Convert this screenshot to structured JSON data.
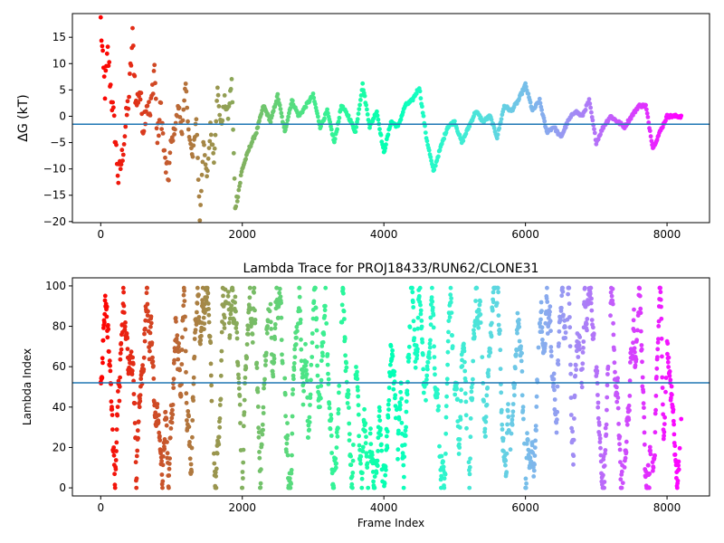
{
  "chart_data": [
    {
      "type": "scatter",
      "title": "",
      "xlabel": "",
      "ylabel": "ΔG (kT)",
      "xlim": [
        -400,
        8600
      ],
      "ylim": [
        -20.2,
        19.5
      ],
      "xticks": [
        0,
        2000,
        4000,
        6000,
        8000
      ],
      "yticks": [
        -20,
        -15,
        -10,
        -5,
        0,
        5,
        10,
        15
      ],
      "xtick_labels": [
        "0",
        "2000",
        "4000",
        "6000",
        "8000"
      ],
      "ytick_labels": [
        "−20",
        "−15",
        "−10",
        "−5",
        "0",
        "5",
        "10",
        "15"
      ],
      "hline": -1.5,
      "hline_color": "#1f77b4",
      "colormap": "rainbow (color by frame index, red at start to violet at end)",
      "trace_keypoints": [
        [
          0,
          18
        ],
        [
          30,
          10
        ],
        [
          60,
          5
        ],
        [
          100,
          12
        ],
        [
          150,
          4
        ],
        [
          200,
          -3
        ],
        [
          250,
          -12
        ],
        [
          300,
          -8
        ],
        [
          350,
          -2
        ],
        [
          400,
          4
        ],
        [
          450,
          15
        ],
        [
          500,
          2
        ],
        [
          550,
          5
        ],
        [
          600,
          -2
        ],
        [
          650,
          3
        ],
        [
          700,
          0
        ],
        [
          760,
          10
        ],
        [
          800,
          -5
        ],
        [
          850,
          2
        ],
        [
          900,
          -8
        ],
        [
          950,
          -12
        ],
        [
          1000,
          -5
        ],
        [
          1050,
          -2
        ],
        [
          1100,
          2
        ],
        [
          1150,
          -3
        ],
        [
          1200,
          6
        ],
        [
          1250,
          -4
        ],
        [
          1300,
          -8
        ],
        [
          1350,
          0
        ],
        [
          1400,
          -19.5
        ],
        [
          1450,
          -5
        ],
        [
          1500,
          -12
        ],
        [
          1550,
          -2
        ],
        [
          1600,
          -8
        ],
        [
          1650,
          5
        ],
        [
          1700,
          -2
        ],
        [
          1750,
          3
        ],
        [
          1800,
          0
        ],
        [
          1850,
          7
        ],
        [
          1900,
          -17
        ],
        [
          1950,
          -14
        ],
        [
          2000,
          -10
        ],
        [
          2100,
          -6
        ],
        [
          2200,
          -3
        ],
        [
          2300,
          2
        ],
        [
          2400,
          -1
        ],
        [
          2500,
          4
        ],
        [
          2600,
          -3
        ],
        [
          2700,
          3
        ],
        [
          2800,
          0
        ],
        [
          2900,
          2
        ],
        [
          3000,
          4
        ],
        [
          3100,
          -2
        ],
        [
          3200,
          1
        ],
        [
          3300,
          -5
        ],
        [
          3400,
          2
        ],
        [
          3500,
          0
        ],
        [
          3600,
          -3
        ],
        [
          3700,
          6
        ],
        [
          3800,
          -2
        ],
        [
          3900,
          1
        ],
        [
          4000,
          -7
        ],
        [
          4100,
          -1
        ],
        [
          4200,
          -2
        ],
        [
          4300,
          2
        ],
        [
          4400,
          3
        ],
        [
          4500,
          5.5
        ],
        [
          4600,
          -4
        ],
        [
          4700,
          -10.5
        ],
        [
          4800,
          -6
        ],
        [
          4900,
          -2
        ],
        [
          5000,
          -1
        ],
        [
          5100,
          -5
        ],
        [
          5200,
          -2
        ],
        [
          5300,
          1
        ],
        [
          5400,
          -1
        ],
        [
          5500,
          0
        ],
        [
          5600,
          -4
        ],
        [
          5700,
          2
        ],
        [
          5800,
          1
        ],
        [
          5900,
          3
        ],
        [
          6000,
          6
        ],
        [
          6100,
          1
        ],
        [
          6200,
          3
        ],
        [
          6300,
          -3
        ],
        [
          6400,
          -2
        ],
        [
          6500,
          -4
        ],
        [
          6600,
          -1
        ],
        [
          6700,
          1
        ],
        [
          6800,
          0
        ],
        [
          6900,
          3
        ],
        [
          7000,
          -5
        ],
        [
          7100,
          -2
        ],
        [
          7200,
          0
        ],
        [
          7300,
          -1
        ],
        [
          7400,
          -2
        ],
        [
          7500,
          0
        ],
        [
          7600,
          2
        ],
        [
          7700,
          2
        ],
        [
          7800,
          -6
        ],
        [
          7900,
          -3
        ],
        [
          8000,
          0
        ],
        [
          8200,
          0
        ]
      ]
    },
    {
      "type": "scatter",
      "title": "Lambda Trace for PROJ18433/RUN62/CLONE31",
      "xlabel": "Frame Index",
      "ylabel": "Lambda Index",
      "xlim": [
        -400,
        8600
      ],
      "ylim": [
        -4,
        104
      ],
      "xticks": [
        0,
        2000,
        4000,
        6000,
        8000
      ],
      "yticks": [
        0,
        20,
        40,
        60,
        80,
        100
      ],
      "xtick_labels": [
        "0",
        "2000",
        "4000",
        "6000",
        "8000"
      ],
      "ytick_labels": [
        "0",
        "20",
        "40",
        "60",
        "80",
        "100"
      ],
      "hline": 52,
      "hline_color": "#1f77b4",
      "colormap": "rainbow (color by frame index, red at start to violet at end)",
      "x_range": [
        0,
        8200
      ],
      "y_range": [
        0,
        99
      ]
    }
  ]
}
